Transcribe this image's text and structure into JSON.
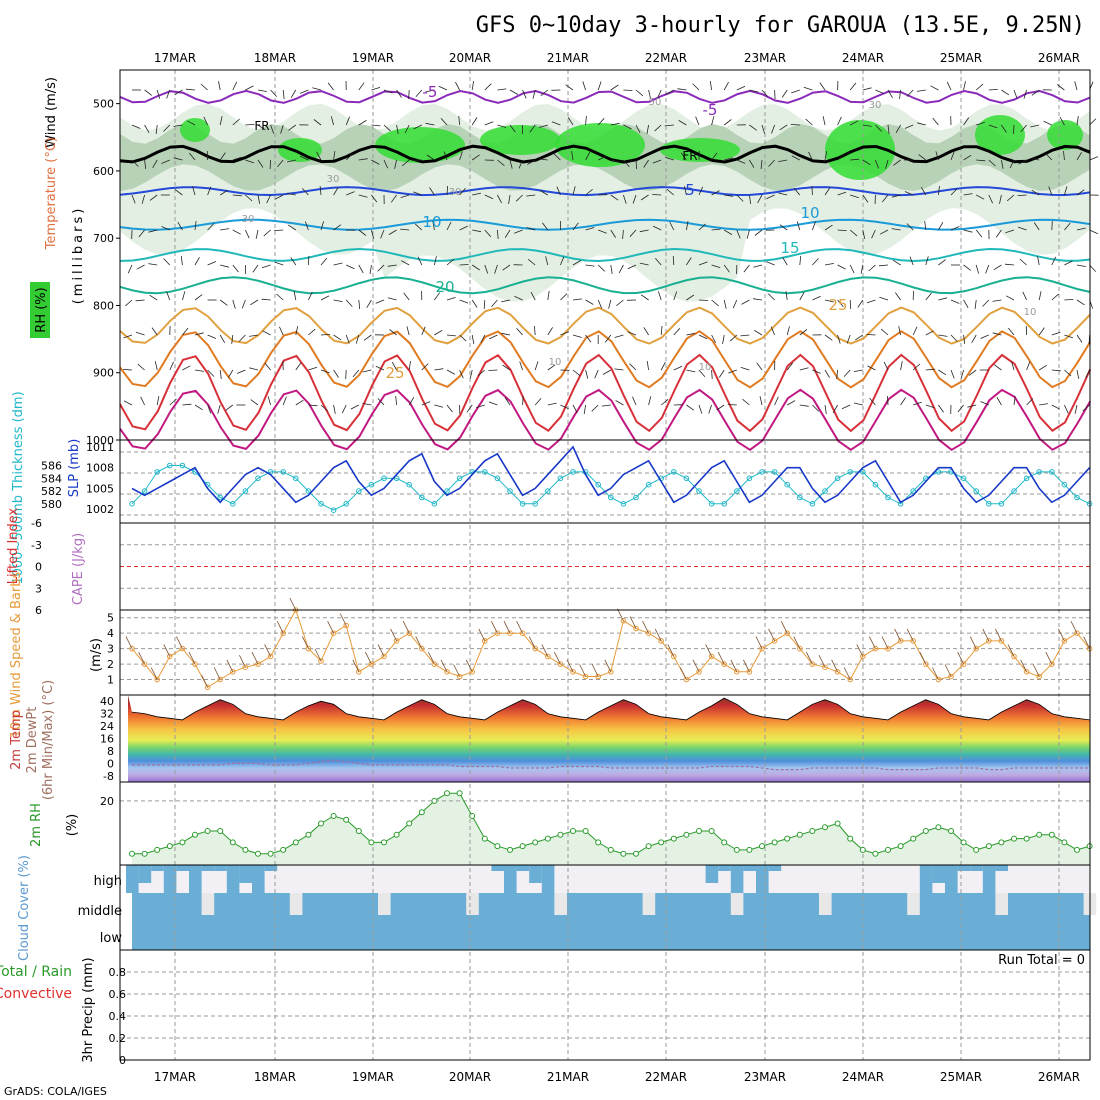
{
  "chart_data": {
    "type": "line",
    "title": "GFS 0~10day 3-hourly for GAROUA (13.5E, 9.25N)",
    "dates": [
      "17MAR",
      "18MAR",
      "19MAR",
      "20MAR",
      "21MAR",
      "22MAR",
      "23MAR",
      "24MAR",
      "25MAR",
      "26MAR"
    ],
    "credit": "GrADS: COLA/IGES",
    "colors": {
      "cloud": "#6aaed6",
      "cloud_bg": "#ececec",
      "rh": "#2a9a2a",
      "thickness": "#20b8c8",
      "slp": "#1838c8",
      "wind": "#e89a3a",
      "dewpt": "#a070a0"
    },
    "panels": {
      "upper": {
        "ylabel": "(millibars)",
        "labels": [
          "RH (%)",
          "Temperature (°C)",
          "Wind (m/s)"
        ],
        "yticks": [
          "500",
          "600",
          "700",
          "800",
          "900",
          "1000"
        ],
        "ylim": [
          1000,
          450
        ],
        "isotherm_labels": [
          "-5",
          "-5",
          "FR",
          "FR",
          "5",
          "10",
          "10",
          "15",
          "20",
          "25",
          "25"
        ],
        "rh_contour_labels": [
          "30",
          "30",
          "30",
          "50",
          "30",
          "10",
          "10",
          "10"
        ]
      },
      "thickness_slp": {
        "ylabel_left": "1000~500mb Thickness (dm)",
        "ylabel_right": "SLP (mb)",
        "thickness_ticks": [
          "586",
          "584",
          "582",
          "580"
        ],
        "slp_ticks": [
          "1011",
          "1008",
          "1005",
          "1002"
        ],
        "thickness": [
          580,
          582,
          585,
          586,
          586,
          585,
          583,
          581,
          580,
          582,
          584,
          585,
          585,
          584,
          582,
          580,
          579,
          580,
          582,
          583,
          584,
          584,
          583,
          581,
          580,
          582,
          584,
          585,
          585,
          584,
          582,
          580,
          580,
          582,
          584,
          585,
          585,
          583,
          581,
          580,
          581,
          583,
          584,
          585,
          584,
          582,
          580,
          580,
          582,
          584,
          585,
          585,
          583,
          581,
          580,
          582,
          584,
          585,
          585,
          583,
          581,
          580,
          582,
          584,
          585,
          585,
          584,
          582,
          580,
          580,
          582,
          584,
          585,
          585,
          583,
          581,
          580
        ],
        "slp": [
          1005,
          1004,
          1005,
          1006,
          1007,
          1008,
          1005,
          1003,
          1005,
          1007,
          1008,
          1007,
          1005,
          1003,
          1004,
          1006,
          1008,
          1009,
          1006,
          1004,
          1005,
          1007,
          1009,
          1010,
          1006,
          1004,
          1005,
          1007,
          1009,
          1010,
          1007,
          1004,
          1005,
          1007,
          1009,
          1011,
          1007,
          1004,
          1005,
          1007,
          1008,
          1009,
          1006,
          1003,
          1004,
          1006,
          1008,
          1009,
          1006,
          1003,
          1004,
          1006,
          1008,
          1008,
          1005,
          1003,
          1004,
          1006,
          1008,
          1009,
          1006,
          1003,
          1004,
          1006,
          1008,
          1008,
          1005,
          1003,
          1004,
          1006,
          1008,
          1008,
          1005,
          1003,
          1004,
          1006,
          1008
        ]
      },
      "cape_li": {
        "ylabel": "CAPE (J/kg)",
        "ylabel2": "Lifted Index",
        "li_ticks": [
          "-6",
          "-3",
          "0",
          "3",
          "6"
        ],
        "li": [
          0
        ]
      },
      "wind10m": {
        "ylabel": "10m Wind Speed & Barbs",
        "unit": "(m/s)",
        "yticks": [
          "5",
          "4",
          "3",
          "2",
          "1"
        ],
        "ylim": [
          0,
          5.5
        ],
        "speed": [
          3,
          2,
          1,
          2.5,
          3,
          2,
          0.5,
          1,
          1.5,
          1.8,
          2,
          2.5,
          4,
          5.5,
          3,
          2.2,
          4,
          4.5,
          1.5,
          2,
          2.5,
          3.5,
          4,
          3,
          2,
          1.5,
          1.2,
          1.5,
          3.5,
          4,
          4,
          4,
          3,
          2.5,
          2,
          1.5,
          1.2,
          1.2,
          1.5,
          4.8,
          4.3,
          4,
          3.5,
          2.5,
          1,
          1.5,
          2.5,
          2,
          1.5,
          1.5,
          3,
          3.5,
          4,
          3,
          2,
          1.8,
          1.5,
          1,
          2.5,
          3,
          3,
          3.5,
          3.5,
          2,
          1,
          1.2,
          2,
          3,
          3.5,
          3.5,
          2.5,
          1.5,
          1.2,
          2,
          3.5,
          4,
          3
        ]
      },
      "temp2m": {
        "ylabel": "2m Temp",
        "ylabel2": "2m DewPt",
        "ylabel3": "(6hr Min/Max) (°C)",
        "yticks": [
          "40",
          "32",
          "24",
          "16",
          "8",
          "0",
          "-8"
        ],
        "ylim": [
          -12,
          44
        ],
        "temp": [
          33,
          32,
          30,
          29,
          28,
          33,
          37,
          41,
          38,
          32,
          30,
          29,
          28,
          33,
          37,
          40,
          38,
          32,
          30,
          29,
          28,
          33,
          37,
          41,
          38,
          32,
          30,
          29,
          28,
          33,
          37,
          41,
          38,
          32,
          30,
          29,
          28,
          33,
          37,
          41,
          38,
          32,
          30,
          29,
          28,
          33,
          37,
          42,
          38,
          32,
          30,
          29,
          28,
          33,
          38,
          41,
          38,
          32,
          30,
          29,
          28,
          33,
          37,
          41,
          38,
          32,
          30,
          29,
          28,
          33,
          37,
          41,
          38,
          32,
          30,
          29,
          28
        ],
        "dewpt": [
          -1,
          -1,
          -1,
          -1,
          -1,
          -1,
          -1,
          -1,
          0,
          0,
          0,
          -1,
          -1,
          -1,
          0,
          1,
          2,
          1,
          0,
          -1,
          -1,
          -1,
          -1,
          -1,
          -1,
          -1,
          -2,
          -2,
          -2,
          -2,
          -3,
          -3,
          -3,
          -3,
          -2,
          -2,
          -2,
          -2,
          -3,
          -3,
          -3,
          -3,
          -3,
          -3,
          -3,
          -3,
          -2,
          -2,
          -2,
          -2,
          -3,
          -4,
          -4,
          -4,
          -3,
          -3,
          -3,
          -3,
          -3,
          -3,
          -4,
          -4,
          -4,
          -4,
          -3,
          -3,
          -3,
          -3,
          -4,
          -4,
          -3,
          -3,
          -3,
          -3,
          -3,
          -3,
          -3
        ]
      },
      "rh2m": {
        "ylabel": "2m RH",
        "unit": "(%)",
        "yticks": [
          "20"
        ],
        "ylim": [
          3,
          25
        ],
        "values": [
          6,
          6,
          7,
          8,
          9,
          11,
          12,
          12,
          9,
          7,
          6,
          6,
          7,
          9,
          11,
          14,
          16,
          15,
          12,
          9,
          9,
          11,
          14,
          17,
          20,
          22,
          22,
          16,
          10,
          8,
          7,
          8,
          9,
          10,
          11,
          12,
          12,
          9,
          7,
          6,
          6,
          8,
          9,
          10,
          11,
          12,
          12,
          9,
          7,
          7,
          8,
          9,
          10,
          11,
          12,
          13,
          14,
          10,
          7,
          6,
          7,
          8,
          10,
          12,
          13,
          12,
          9,
          7,
          8,
          9,
          10,
          10,
          11,
          11,
          9,
          7,
          8
        ]
      },
      "cloud": {
        "ylabel": "Cloud Cover (%)",
        "levels": [
          "high",
          "middle",
          "low"
        ]
      },
      "precip": {
        "ylabel": "3hr Precip (mm)",
        "legend_total": "Total / Rain",
        "legend_convective": "Convective",
        "yticks": [
          "0.8",
          "0.6",
          "0.4",
          "0.2",
          "0"
        ],
        "ylim": [
          0,
          1
        ],
        "run_total": "Run Total = 0",
        "values": [
          0
        ]
      }
    }
  }
}
